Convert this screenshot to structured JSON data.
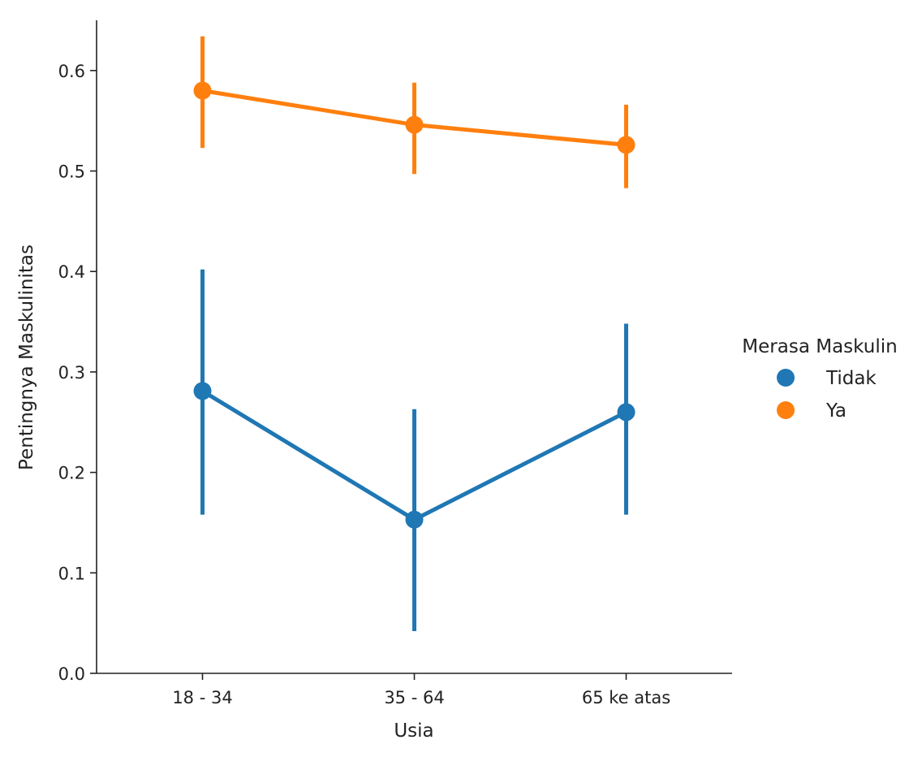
{
  "chart_data": {
    "type": "line",
    "subtype": "pointplot-with-error-bars",
    "xlabel": "Usia",
    "ylabel": "Pentingnya Maskulinitas",
    "categories": [
      "18 - 34",
      "35 - 64",
      "65 ke atas"
    ],
    "ylim": [
      0,
      0.65
    ],
    "yticks": [
      "0.0",
      "0.1",
      "0.2",
      "0.3",
      "0.4",
      "0.5",
      "0.6"
    ],
    "grid": false,
    "legend": {
      "title": "Merasa Maskulin",
      "placement": "right"
    },
    "series": [
      {
        "name": "Tidak",
        "color": "#1f77b4",
        "values": [
          0.281,
          0.153,
          0.26
        ],
        "error_low": [
          0.158,
          0.042,
          0.158
        ],
        "error_high": [
          0.402,
          0.263,
          0.348
        ]
      },
      {
        "name": "Ya",
        "color": "#ff7f0e",
        "values": [
          0.58,
          0.546,
          0.526
        ],
        "error_low": [
          0.523,
          0.497,
          0.483
        ],
        "error_high": [
          0.634,
          0.588,
          0.566
        ]
      }
    ]
  }
}
